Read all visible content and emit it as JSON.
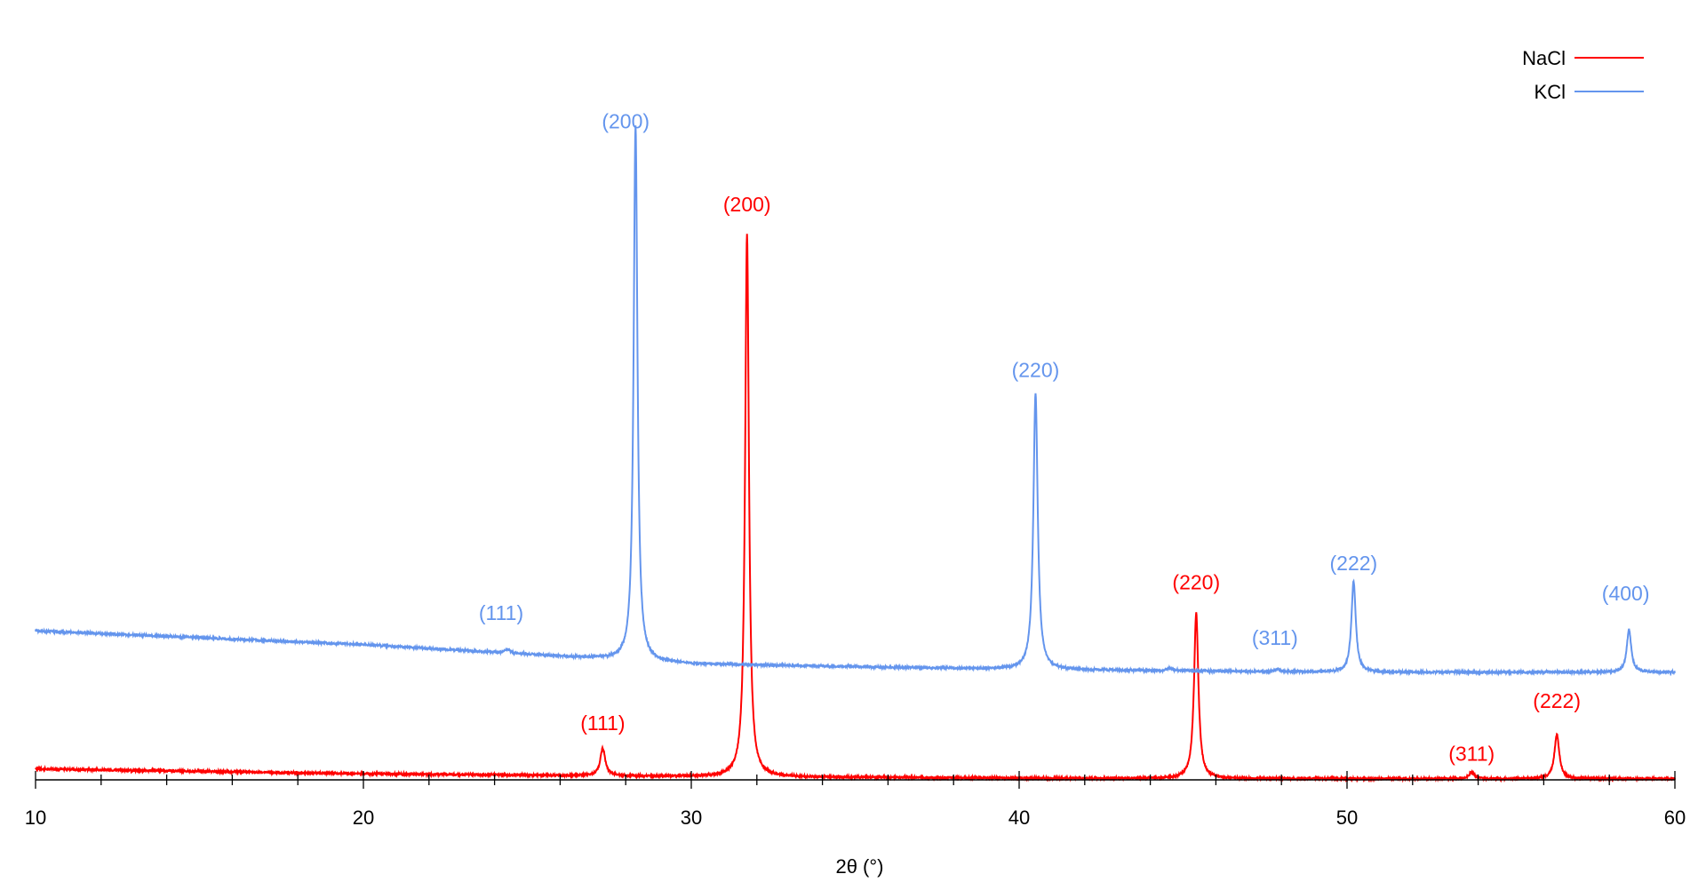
{
  "chart_data": {
    "type": "line",
    "title": "",
    "xlabel": "2θ (°)",
    "ylabel": "",
    "xlim": [
      10,
      60
    ],
    "ylim": [
      0,
      100
    ],
    "xticks": [
      10,
      20,
      30,
      40,
      50,
      60
    ],
    "grid": false,
    "legend": "top-right",
    "series": [
      {
        "name": "NaCl",
        "color": "#ff0000",
        "baseline": [
          [
            10,
            2.0
          ],
          [
            20,
            1.1
          ],
          [
            30,
            0.6
          ],
          [
            40,
            0.3
          ],
          [
            50,
            0.2
          ],
          [
            60,
            0.2
          ]
        ],
        "peaks": [
          {
            "x": 27.3,
            "height": 5.0,
            "width": 0.09,
            "label": "(111)"
          },
          {
            "x": 31.7,
            "height": 98.5,
            "width": 0.07,
            "label": "(200)"
          },
          {
            "x": 45.4,
            "height": 30.0,
            "width": 0.08,
            "label": "(220)"
          },
          {
            "x": 53.8,
            "height": 1.2,
            "width": 0.09,
            "label": "(311)"
          },
          {
            "x": 56.4,
            "height": 8.0,
            "width": 0.09,
            "label": "(222)"
          }
        ]
      },
      {
        "name": "KCl",
        "color": "#6495ed",
        "baseline": [
          [
            10,
            27.0
          ],
          [
            20,
            24.5
          ],
          [
            30,
            21.0
          ],
          [
            40,
            20.0
          ],
          [
            50,
            19.5
          ],
          [
            60,
            19.5
          ]
        ],
        "peaks": [
          {
            "x": 24.4,
            "height": 0.6,
            "width": 0.1,
            "label": "(111)"
          },
          {
            "x": 28.3,
            "height": 97.0,
            "width": 0.07,
            "label": "(200)"
          },
          {
            "x": 40.5,
            "height": 50.0,
            "width": 0.08,
            "label": "(220)"
          },
          {
            "x": 44.6,
            "height": 0.4,
            "width": 0.1,
            "label": ""
          },
          {
            "x": 47.9,
            "height": 0.4,
            "width": 0.1,
            "label": "(311)"
          },
          {
            "x": 50.2,
            "height": 16.5,
            "width": 0.08,
            "label": "(222)"
          },
          {
            "x": 58.6,
            "height": 7.8,
            "width": 0.08,
            "label": "(400)"
          }
        ]
      }
    ],
    "annotations": [
      {
        "series": "KCl",
        "text": "(111)",
        "x": 24.2,
        "y": 29.0
      },
      {
        "series": "KCl",
        "text": "(200)",
        "x": 28.0,
        "y": 118.0
      },
      {
        "series": "KCl",
        "text": "(220)",
        "x": 40.5,
        "y": 73.0
      },
      {
        "series": "KCl",
        "text": "(311)",
        "x": 47.8,
        "y": 24.5
      },
      {
        "series": "KCl",
        "text": "(222)",
        "x": 50.2,
        "y": 38.0
      },
      {
        "series": "KCl",
        "text": "(400)",
        "x": 58.5,
        "y": 32.5
      },
      {
        "series": "NaCl",
        "text": "(111)",
        "x": 27.3,
        "y": 9.0
      },
      {
        "series": "NaCl",
        "text": "(200)",
        "x": 31.7,
        "y": 103.0
      },
      {
        "series": "NaCl",
        "text": "(220)",
        "x": 45.4,
        "y": 34.5
      },
      {
        "series": "NaCl",
        "text": "(311)",
        "x": 53.8,
        "y": 3.5
      },
      {
        "series": "NaCl",
        "text": "(222)",
        "x": 56.4,
        "y": 13.0
      }
    ]
  }
}
